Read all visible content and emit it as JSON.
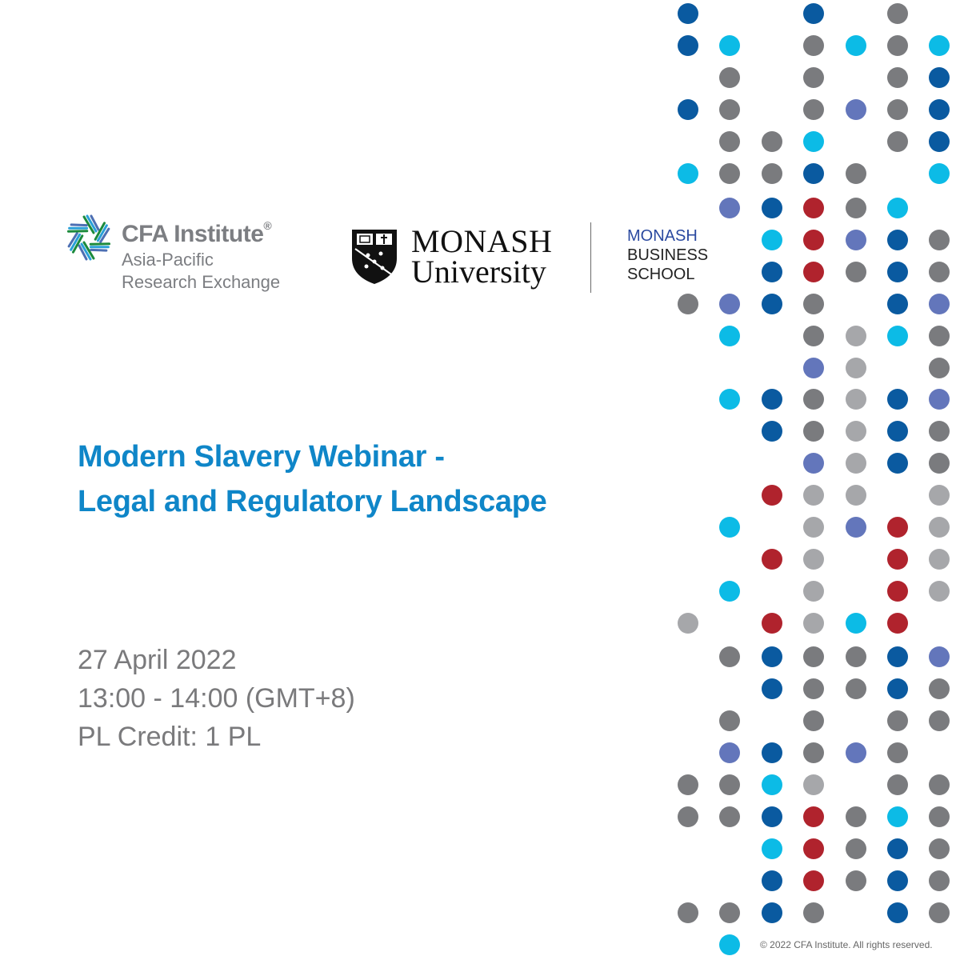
{
  "logos": {
    "cfa": {
      "name": "CFA Institute",
      "registered": "®",
      "line1": "Asia-Pacific",
      "line2": "Research Exchange"
    },
    "monash_university": {
      "line1": "MONASH",
      "line2": "University"
    },
    "monash_business_school": {
      "line1": "MONASH",
      "line2": "BUSINESS",
      "line3": "SCHOOL"
    }
  },
  "event": {
    "title_line1": "Modern Slavery Webinar -",
    "title_line2": "Legal and Regulatory Landscape",
    "date": "27 April 2022",
    "time": "13:00 - 14:00 (GMT+8)",
    "credit": "PL Credit: 1 PL"
  },
  "footer": {
    "copyright": "© 2022 CFA Institute. All rights reserved."
  },
  "colors": {
    "navy": "#0a5aa0",
    "cyan": "#0cbbe6",
    "gray": "#7a7b7e",
    "light_gray": "#a6a7aa",
    "periwinkle": "#6376bb",
    "red": "#b0232d",
    "title_blue": "#0f86c8"
  }
}
